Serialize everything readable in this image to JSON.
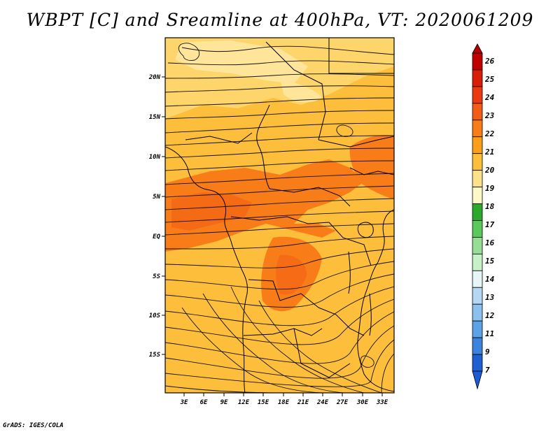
{
  "title": "WBPT [C] and Sreamline at 400hPa, VT: 2020061209",
  "credit": "GrADS: IGES/COLA",
  "map": {
    "lat_labels": [
      "20N",
      "15N",
      "10N",
      "5N",
      "EQ",
      "5S",
      "10S",
      "15S"
    ],
    "lon_labels": [
      "3E",
      "6E",
      "9E",
      "12E",
      "15E",
      "18E",
      "21E",
      "24E",
      "27E",
      "30E",
      "33E"
    ]
  },
  "colorbar": {
    "labels": [
      "26",
      "25",
      "24",
      "23",
      "22",
      "21",
      "20",
      "19",
      "18",
      "17",
      "16",
      "15",
      "14",
      "13",
      "12",
      "11",
      "9",
      "7"
    ],
    "colors": [
      "#c00000",
      "#d81e08",
      "#ec3a10",
      "#f35c14",
      "#f87d18",
      "#fb9e1a",
      "#fdbe3c",
      "#fde08a",
      "#fef8c6",
      "#2ca82c",
      "#5ac85a",
      "#96de96",
      "#c6f0c6",
      "#e6f6f6",
      "#b4d8f4",
      "#8cc0ee",
      "#5ca2e6",
      "#3a84de",
      "#1e60d2"
    ],
    "top_color": "#b40000",
    "bottom_color": "#1e5ad2"
  }
}
